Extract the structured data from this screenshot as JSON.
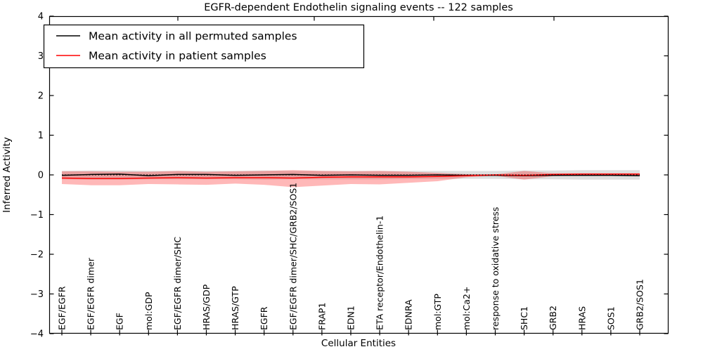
{
  "chart_data": {
    "type": "line",
    "title": "EGFR-dependent Endothelin signaling events -- 122 samples",
    "xlabel": "Cellular Entities",
    "ylabel": "Inferred Activity",
    "ylim": [
      -4,
      4
    ],
    "yticks": [
      -4,
      -3,
      -2,
      -1,
      0,
      1,
      2,
      3,
      4
    ],
    "grid": false,
    "legend_position": "upper left",
    "categories": [
      "EGF/EGFR",
      "EGF/EGFR dimer",
      "EGF",
      "mol:GDP",
      "EGF/EGFR dimer/SHC",
      "HRAS/GDP",
      "HRAS/GTP",
      "EGFR",
      "EGF/EGFR dimer/SHC/GRB2/SOS1",
      "FRAP1",
      "EDN1",
      "ETA receptor/Endothelin-1",
      "EDNRA",
      "mol:GTP",
      "mol:Ca2+",
      "response to oxidative stress",
      "SHC1",
      "GRB2",
      "HRAS",
      "SOS1",
      "GRB2/SOS1"
    ],
    "series": [
      {
        "name": "Mean activity in all permuted samples",
        "color": "#000000",
        "values": [
          -0.01,
          0.01,
          0.02,
          -0.02,
          0.01,
          0.01,
          -0.01,
          0.0,
          0.01,
          -0.01,
          0.0,
          -0.01,
          -0.01,
          0.0,
          -0.01,
          -0.01,
          -0.02,
          -0.01,
          -0.01,
          -0.01,
          -0.02
        ]
      },
      {
        "name": "Mean activity in patient samples",
        "color": "#ff0000",
        "values": [
          -0.08,
          -0.09,
          -0.09,
          -0.08,
          -0.07,
          -0.08,
          -0.07,
          -0.07,
          -0.08,
          -0.06,
          -0.05,
          -0.05,
          -0.05,
          -0.04,
          -0.02,
          0.0,
          -0.01,
          0.01,
          0.02,
          0.02,
          0.02
        ]
      }
    ],
    "bands": [
      {
        "name": "permuted-std-band",
        "color": "rgba(0,0,0,0.13)",
        "upper": [
          0.1,
          0.11,
          0.11,
          0.1,
          0.1,
          0.1,
          0.1,
          0.11,
          0.1,
          0.1,
          0.1,
          0.1,
          0.1,
          0.1,
          0.1,
          0.1,
          0.11,
          0.11,
          0.12,
          0.12,
          0.12
        ],
        "lower": [
          -0.11,
          -0.12,
          -0.12,
          -0.11,
          -0.11,
          -0.11,
          -0.11,
          -0.12,
          -0.11,
          -0.11,
          -0.11,
          -0.11,
          -0.1,
          -0.1,
          -0.1,
          -0.1,
          -0.11,
          -0.11,
          -0.12,
          -0.12,
          -0.12
        ]
      },
      {
        "name": "patient-std-band",
        "color": "rgba(255,0,0,0.28)",
        "upper": [
          0.09,
          0.09,
          0.08,
          0.08,
          0.1,
          0.08,
          0.09,
          0.1,
          0.12,
          0.1,
          0.09,
          0.1,
          0.08,
          0.05,
          0.02,
          0.01,
          0.1,
          0.04,
          0.04,
          0.04,
          0.04
        ],
        "lower": [
          -0.23,
          -0.26,
          -0.26,
          -0.23,
          -0.24,
          -0.25,
          -0.22,
          -0.25,
          -0.31,
          -0.27,
          -0.23,
          -0.24,
          -0.2,
          -0.16,
          -0.06,
          -0.02,
          -0.12,
          -0.03,
          -0.02,
          -0.02,
          -0.03
        ]
      }
    ],
    "zero_line": {
      "value": 0,
      "style": "dotted",
      "color": "#000000"
    }
  }
}
